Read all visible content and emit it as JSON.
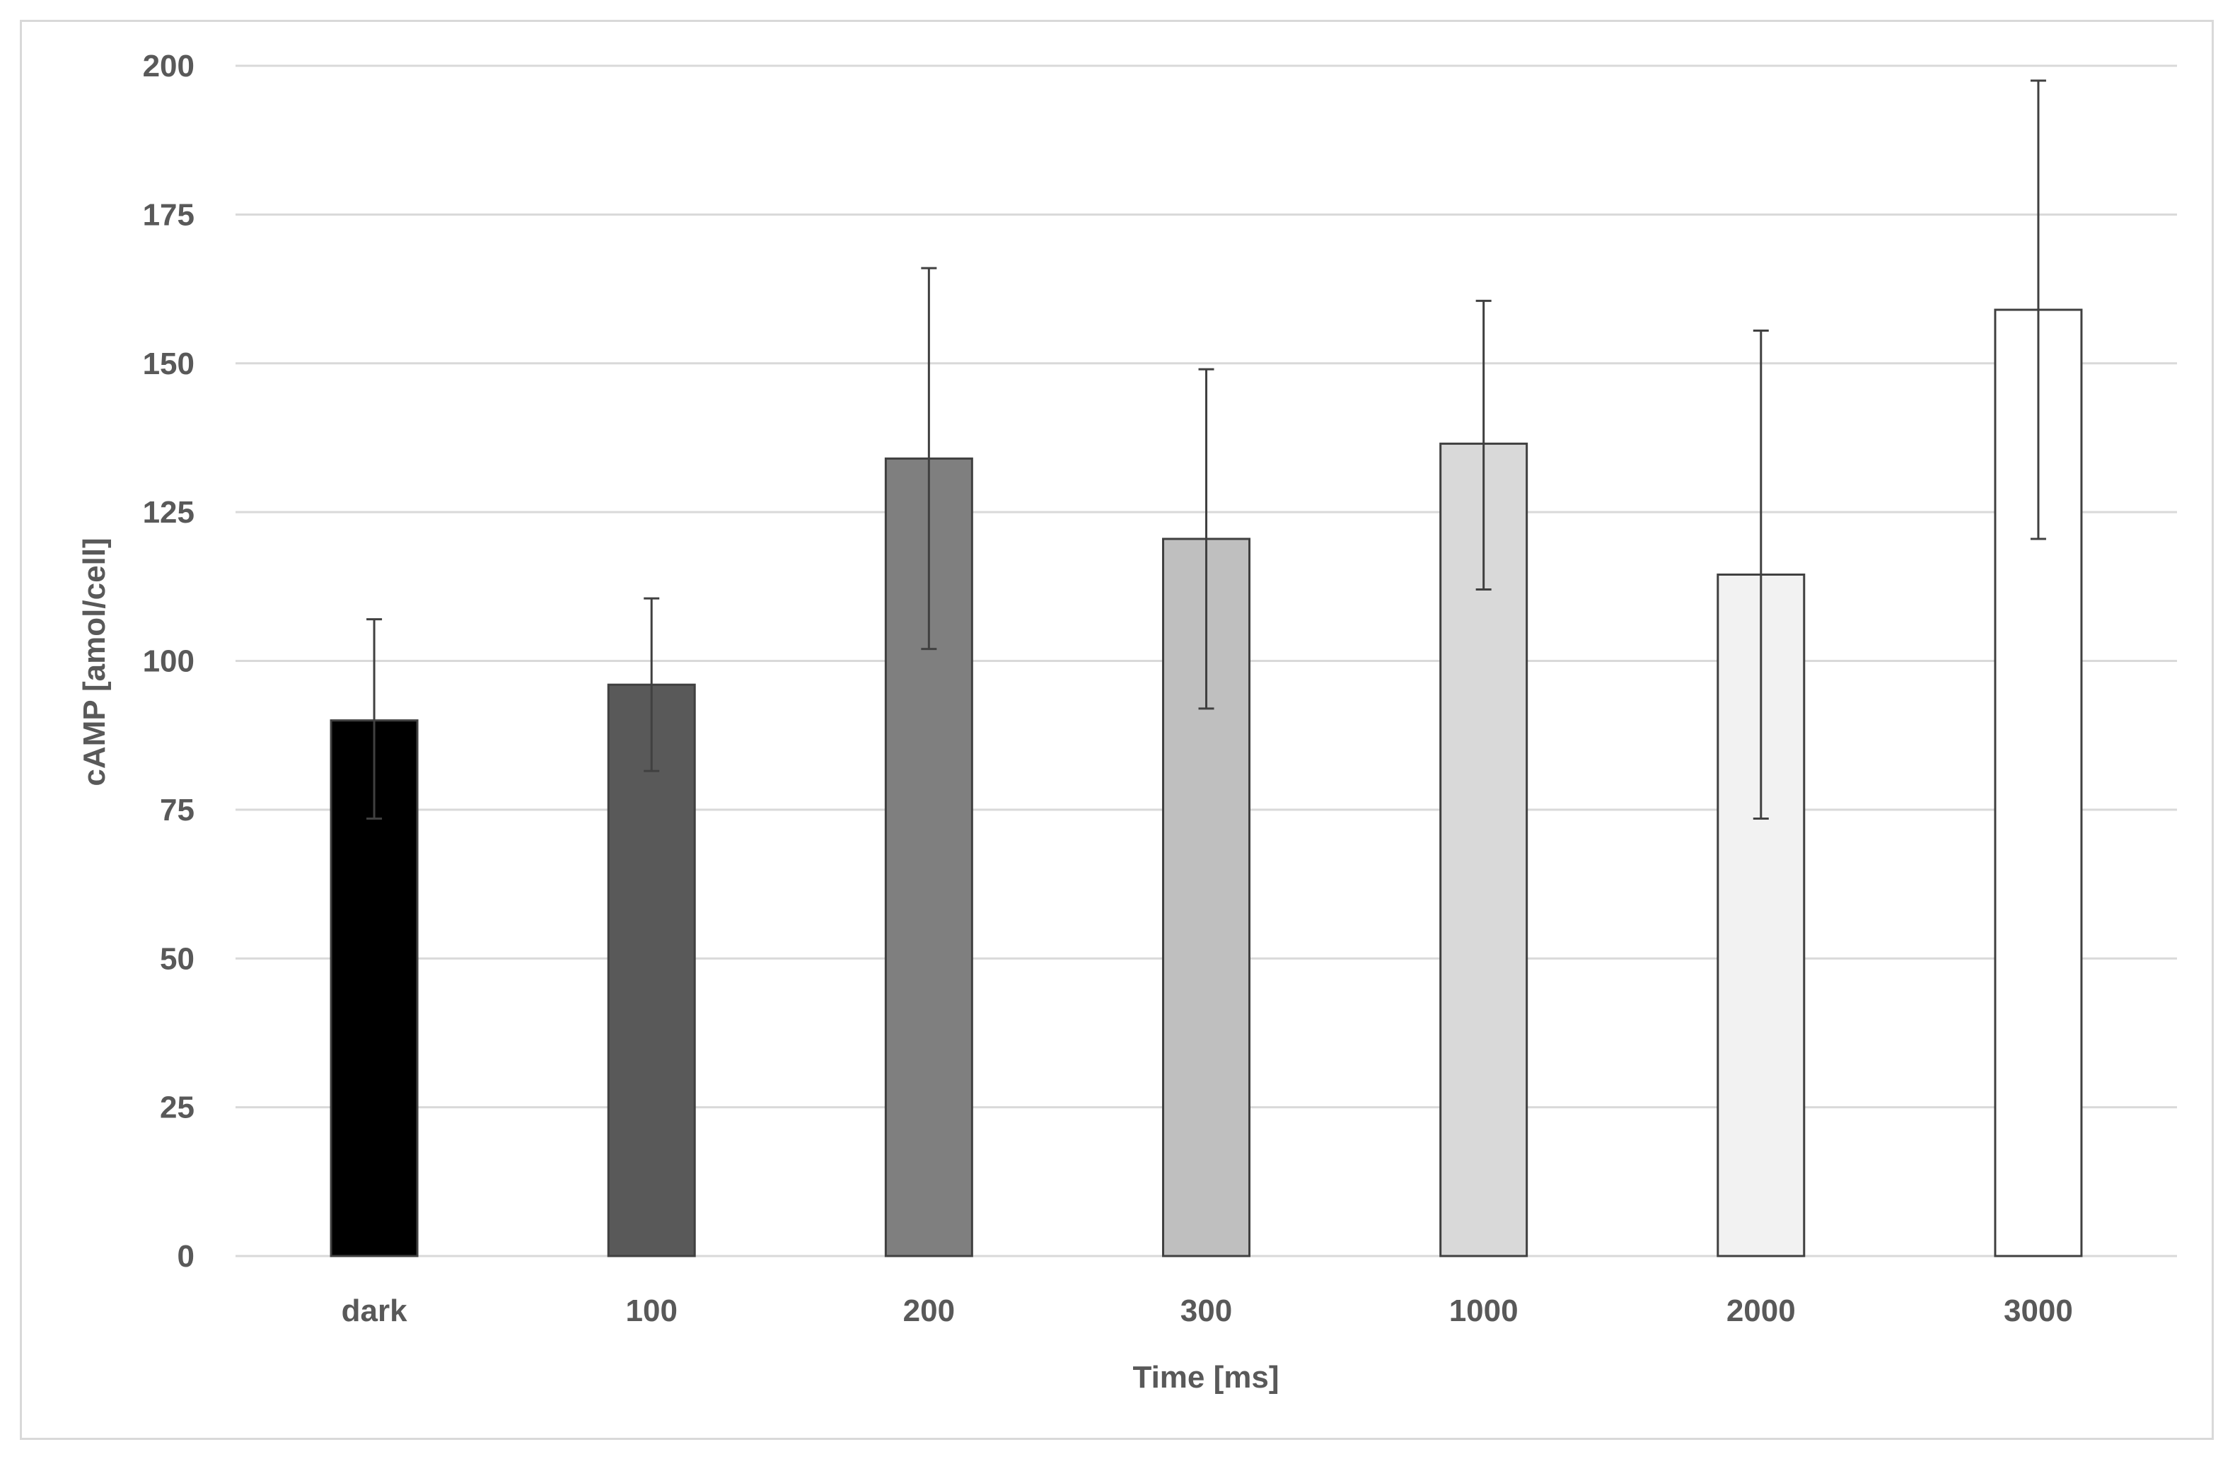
{
  "chart_data": {
    "type": "bar",
    "title": "",
    "xlabel": "Time [ms]",
    "ylabel": "cAMP [amol/cell]",
    "categories": [
      "dark",
      "100",
      "200",
      "300",
      "1000",
      "2000",
      "3000"
    ],
    "values": [
      90,
      96,
      134,
      120.5,
      136.5,
      114.5,
      159
    ],
    "error_upper": [
      107,
      110.5,
      166,
      149,
      160.5,
      155.5,
      197.5
    ],
    "error_lower": [
      73.5,
      81.5,
      102,
      92,
      112,
      73.5,
      120.5
    ],
    "bar_colors": [
      "#000000",
      "#595959",
      "#7f7f7f",
      "#bfbfbf",
      "#d9d9d9",
      "#f2f2f2",
      "#ffffff"
    ],
    "bar_edge_color": "#404040",
    "ylim": [
      0,
      200
    ],
    "yticks": [
      0,
      25,
      50,
      75,
      100,
      125,
      150,
      175,
      200
    ],
    "grid": true,
    "legend": "none"
  }
}
